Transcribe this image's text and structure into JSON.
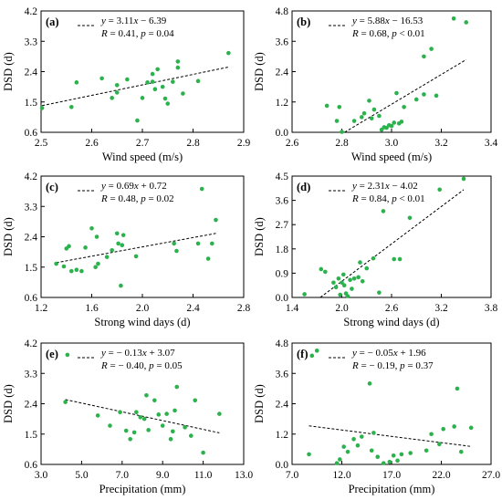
{
  "colors": {
    "points": "#2bb24c",
    "fit": "#000000",
    "axes": "#000000"
  },
  "chart_data": [
    {
      "type": "scatter",
      "panel": "(a)",
      "xlabel": "Wind speed  (m/s)",
      "ylabel": "DSD (d)",
      "xlim": [
        2.5,
        2.9
      ],
      "ylim": [
        0.6,
        4.2
      ],
      "xticks": [
        "2.5",
        "2.6",
        "2.7",
        "2.8",
        "2.9"
      ],
      "yticks": [
        "0.6",
        "1.5",
        "2.4",
        "3.3",
        "4.2"
      ],
      "fit_line": {
        "slope": 3.11,
        "intercept": -6.39
      },
      "legend": {
        "eq": "y = 3.11x − 6.39",
        "stats": "R = 0.41,  p = 0.04"
      },
      "points": [
        {
          "x": 2.502,
          "y": 1.32
        },
        {
          "x": 2.56,
          "y": 1.35
        },
        {
          "x": 2.57,
          "y": 2.08
        },
        {
          "x": 2.62,
          "y": 2.2
        },
        {
          "x": 2.64,
          "y": 1.62
        },
        {
          "x": 2.65,
          "y": 1.78
        },
        {
          "x": 2.65,
          "y": 2.0
        },
        {
          "x": 2.67,
          "y": 2.17
        },
        {
          "x": 2.69,
          "y": 0.95
        },
        {
          "x": 2.7,
          "y": 1.62
        },
        {
          "x": 2.71,
          "y": 2.08
        },
        {
          "x": 2.72,
          "y": 2.1
        },
        {
          "x": 2.72,
          "y": 2.33
        },
        {
          "x": 2.725,
          "y": 1.88
        },
        {
          "x": 2.73,
          "y": 2.47
        },
        {
          "x": 2.74,
          "y": 1.95
        },
        {
          "x": 2.745,
          "y": 1.6
        },
        {
          "x": 2.75,
          "y": 1.45
        },
        {
          "x": 2.76,
          "y": 2.1
        },
        {
          "x": 2.77,
          "y": 2.52
        },
        {
          "x": 2.77,
          "y": 2.7
        },
        {
          "x": 2.78,
          "y": 1.75
        },
        {
          "x": 2.81,
          "y": 2.12
        },
        {
          "x": 2.87,
          "y": 2.95
        }
      ]
    },
    {
      "type": "scatter",
      "panel": "(b)",
      "xlabel": "Wind speed  (m/s)",
      "ylabel": "DSD (d)",
      "xlim": [
        2.6,
        3.4
      ],
      "ylim": [
        0.0,
        4.8
      ],
      "xticks": [
        "2.6",
        "2.8",
        "3.0",
        "3.2",
        "3.4"
      ],
      "yticks": [
        "0.0",
        "1.2",
        "2.4",
        "3.6",
        "4.8"
      ],
      "fit_line": {
        "slope": 5.88,
        "intercept": -16.53
      },
      "legend": {
        "eq": "y = 5.88x − 16.53",
        "stats": "R = 0.68,  p < 0.01"
      },
      "points": [
        {
          "x": 2.74,
          "y": 1.05
        },
        {
          "x": 2.78,
          "y": 0.45
        },
        {
          "x": 2.79,
          "y": 1.0
        },
        {
          "x": 2.8,
          "y": 0.02
        },
        {
          "x": 2.85,
          "y": 0.45
        },
        {
          "x": 2.88,
          "y": 0.6
        },
        {
          "x": 2.89,
          "y": 0.75
        },
        {
          "x": 2.91,
          "y": 1.25
        },
        {
          "x": 2.92,
          "y": 0.55
        },
        {
          "x": 2.93,
          "y": 0.9
        },
        {
          "x": 2.95,
          "y": 0.65
        },
        {
          "x": 2.96,
          "y": 0.1
        },
        {
          "x": 2.97,
          "y": 0.2
        },
        {
          "x": 2.98,
          "y": 0.18
        },
        {
          "x": 2.99,
          "y": 0.28
        },
        {
          "x": 3.0,
          "y": 0.25
        },
        {
          "x": 3.01,
          "y": 0.38
        },
        {
          "x": 3.02,
          "y": 1.55
        },
        {
          "x": 3.03,
          "y": 0.35
        },
        {
          "x": 3.04,
          "y": 0.42
        },
        {
          "x": 3.05,
          "y": 1.0
        },
        {
          "x": 3.1,
          "y": 1.3
        },
        {
          "x": 3.13,
          "y": 1.5
        },
        {
          "x": 3.13,
          "y": 3.0
        },
        {
          "x": 3.16,
          "y": 3.3
        },
        {
          "x": 3.18,
          "y": 1.45
        },
        {
          "x": 3.25,
          "y": 4.5
        },
        {
          "x": 3.3,
          "y": 4.35
        }
      ]
    },
    {
      "type": "scatter",
      "panel": "(c)",
      "xlabel": "Strong wind days  (d)",
      "ylabel": "DSD (d)",
      "xlim": [
        1.2,
        2.8
      ],
      "ylim": [
        0.6,
        4.2
      ],
      "xticks": [
        "1.2",
        "1.6",
        "2.0",
        "2.4",
        "2.8"
      ],
      "yticks": [
        "0.6",
        "1.5",
        "2.4",
        "3.3",
        "4.2"
      ],
      "fit_line": {
        "slope": 0.69,
        "intercept": 0.72
      },
      "legend": {
        "eq": "y = 0.69x + 0.72",
        "stats": "R = 0.48,  p = 0.02"
      },
      "points": [
        {
          "x": 1.32,
          "y": 1.6
        },
        {
          "x": 1.38,
          "y": 1.52
        },
        {
          "x": 1.4,
          "y": 2.05
        },
        {
          "x": 1.42,
          "y": 2.12
        },
        {
          "x": 1.44,
          "y": 1.38
        },
        {
          "x": 1.48,
          "y": 1.42
        },
        {
          "x": 1.52,
          "y": 1.38
        },
        {
          "x": 1.55,
          "y": 2.08
        },
        {
          "x": 1.6,
          "y": 2.65
        },
        {
          "x": 1.63,
          "y": 1.5
        },
        {
          "x": 1.64,
          "y": 2.4
        },
        {
          "x": 1.65,
          "y": 1.6
        },
        {
          "x": 1.72,
          "y": 1.8
        },
        {
          "x": 1.76,
          "y": 2.0
        },
        {
          "x": 1.8,
          "y": 2.5
        },
        {
          "x": 1.81,
          "y": 2.2
        },
        {
          "x": 1.83,
          "y": 0.95
        },
        {
          "x": 1.84,
          "y": 2.15
        },
        {
          "x": 1.85,
          "y": 2.45
        },
        {
          "x": 1.95,
          "y": 1.82
        },
        {
          "x": 2.25,
          "y": 2.2
        },
        {
          "x": 2.27,
          "y": 1.98
        },
        {
          "x": 2.44,
          "y": 2.2
        },
        {
          "x": 2.47,
          "y": 3.82
        },
        {
          "x": 2.52,
          "y": 1.75
        },
        {
          "x": 2.55,
          "y": 2.2
        },
        {
          "x": 2.58,
          "y": 2.9
        }
      ]
    },
    {
      "type": "scatter",
      "panel": "(d)",
      "xlabel": "Strong wind days  (d)",
      "ylabel": "DSD (d)",
      "xlim": [
        1.4,
        3.8
      ],
      "ylim": [
        0.0,
        4.5
      ],
      "xticks": [
        "1.4",
        "2.0",
        "2.6",
        "3.2",
        "3.8"
      ],
      "yticks": [
        "0.0",
        "0.9",
        "1.8",
        "2.7",
        "3.6",
        "4.5"
      ],
      "fit_line": {
        "slope": 2.31,
        "intercept": -4.02
      },
      "legend": {
        "eq": "y = 2.31x − 4.02",
        "stats": "R = 0.84,  p < 0.01"
      },
      "points": [
        {
          "x": 1.55,
          "y": 0.12
        },
        {
          "x": 1.75,
          "y": 1.05
        },
        {
          "x": 1.8,
          "y": 0.95
        },
        {
          "x": 1.9,
          "y": 0.55
        },
        {
          "x": 1.93,
          "y": 0.38
        },
        {
          "x": 1.96,
          "y": 0.7
        },
        {
          "x": 1.98,
          "y": 0.1
        },
        {
          "x": 2.0,
          "y": 0.55
        },
        {
          "x": 2.02,
          "y": 0.85
        },
        {
          "x": 2.03,
          "y": 0.45
        },
        {
          "x": 2.05,
          "y": 0.15
        },
        {
          "x": 2.07,
          "y": 0.05
        },
        {
          "x": 2.1,
          "y": 0.65
        },
        {
          "x": 2.12,
          "y": 0.32
        },
        {
          "x": 2.15,
          "y": 0.7
        },
        {
          "x": 2.2,
          "y": 0.75
        },
        {
          "x": 2.22,
          "y": 1.3
        },
        {
          "x": 2.25,
          "y": 0.6
        },
        {
          "x": 2.3,
          "y": 1.08
        },
        {
          "x": 2.38,
          "y": 1.45
        },
        {
          "x": 2.45,
          "y": 0.18
        },
        {
          "x": 2.5,
          "y": 3.2
        },
        {
          "x": 2.63,
          "y": 1.42
        },
        {
          "x": 2.7,
          "y": 1.42
        },
        {
          "x": 2.82,
          "y": 2.95
        },
        {
          "x": 3.18,
          "y": 4.0
        },
        {
          "x": 3.47,
          "y": 4.4
        }
      ]
    },
    {
      "type": "scatter",
      "panel": "(e)",
      "xlabel": "Precipitation  (mm)",
      "ylabel": "DSD (d)",
      "xlim": [
        3.0,
        13.0
      ],
      "ylim": [
        0.6,
        4.2
      ],
      "xticks": [
        "3.0",
        "5.0",
        "7.0",
        "9.0",
        "11.0",
        "13.0"
      ],
      "yticks": [
        "0.6",
        "1.5",
        "2.4",
        "3.3",
        "4.2"
      ],
      "fit_line": {
        "slope": -0.13,
        "intercept": 3.07
      },
      "legend": {
        "eq": "y = − 0.13x + 3.07",
        "stats": "R = − 0.40,  p = 0.05"
      },
      "points": [
        {
          "x": 4.3,
          "y": 3.85
        },
        {
          "x": 4.2,
          "y": 2.45
        },
        {
          "x": 5.8,
          "y": 2.05
        },
        {
          "x": 6.4,
          "y": 1.75
        },
        {
          "x": 6.9,
          "y": 2.15
        },
        {
          "x": 7.2,
          "y": 1.6
        },
        {
          "x": 7.4,
          "y": 1.35
        },
        {
          "x": 7.6,
          "y": 1.55
        },
        {
          "x": 7.7,
          "y": 2.15
        },
        {
          "x": 7.9,
          "y": 2.0
        },
        {
          "x": 8.1,
          "y": 1.95
        },
        {
          "x": 8.2,
          "y": 2.65
        },
        {
          "x": 8.3,
          "y": 1.62
        },
        {
          "x": 8.6,
          "y": 2.5
        },
        {
          "x": 8.8,
          "y": 2.08
        },
        {
          "x": 9.0,
          "y": 1.75
        },
        {
          "x": 9.2,
          "y": 2.1
        },
        {
          "x": 9.4,
          "y": 1.35
        },
        {
          "x": 9.5,
          "y": 1.58
        },
        {
          "x": 9.6,
          "y": 2.2
        },
        {
          "x": 9.7,
          "y": 2.9
        },
        {
          "x": 10.1,
          "y": 1.7
        },
        {
          "x": 10.4,
          "y": 1.45
        },
        {
          "x": 10.6,
          "y": 2.5
        },
        {
          "x": 11.0,
          "y": 0.95
        },
        {
          "x": 11.8,
          "y": 2.1
        }
      ]
    },
    {
      "type": "scatter",
      "panel": "(f)",
      "xlabel": "Precipitation  (mm)",
      "ylabel": "DSD (d)",
      "xlim": [
        7.0,
        27.0
      ],
      "ylim": [
        0.0,
        4.8
      ],
      "xticks": [
        "7.0",
        "12.0",
        "17.0",
        "22.0",
        "27.0"
      ],
      "yticks": [
        "0.0",
        "1.2",
        "2.4",
        "3.6",
        "4.8"
      ],
      "fit_line": {
        "slope": -0.05,
        "intercept": 1.96
      },
      "legend": {
        "eq": "y = − 0.05x + 1.96",
        "stats": "R = − 0.19,  p = 0.37"
      },
      "points": [
        {
          "x": 8.7,
          "y": 0.4
        },
        {
          "x": 9.0,
          "y": 4.3
        },
        {
          "x": 9.5,
          "y": 4.5
        },
        {
          "x": 11.5,
          "y": 0.05
        },
        {
          "x": 11.8,
          "y": 0.2
        },
        {
          "x": 12.2,
          "y": 0.7
        },
        {
          "x": 12.6,
          "y": 0.5
        },
        {
          "x": 13.2,
          "y": 1.0
        },
        {
          "x": 13.6,
          "y": 0.75
        },
        {
          "x": 14.0,
          "y": 1.1
        },
        {
          "x": 14.8,
          "y": 3.2
        },
        {
          "x": 15.0,
          "y": 0.55
        },
        {
          "x": 15.2,
          "y": 1.25
        },
        {
          "x": 15.6,
          "y": 0.3
        },
        {
          "x": 16.2,
          "y": 0.05
        },
        {
          "x": 16.8,
          "y": 0.1
        },
        {
          "x": 17.2,
          "y": 0.35
        },
        {
          "x": 17.6,
          "y": 0.15
        },
        {
          "x": 18.0,
          "y": 0.4
        },
        {
          "x": 18.9,
          "y": 0.45
        },
        {
          "x": 20.5,
          "y": 0.55
        },
        {
          "x": 21.0,
          "y": 1.2
        },
        {
          "x": 21.8,
          "y": 0.8
        },
        {
          "x": 22.2,
          "y": 1.4
        },
        {
          "x": 23.3,
          "y": 1.5
        },
        {
          "x": 23.6,
          "y": 3.0
        },
        {
          "x": 24.0,
          "y": 0.5
        },
        {
          "x": 25.0,
          "y": 1.45
        }
      ]
    }
  ]
}
